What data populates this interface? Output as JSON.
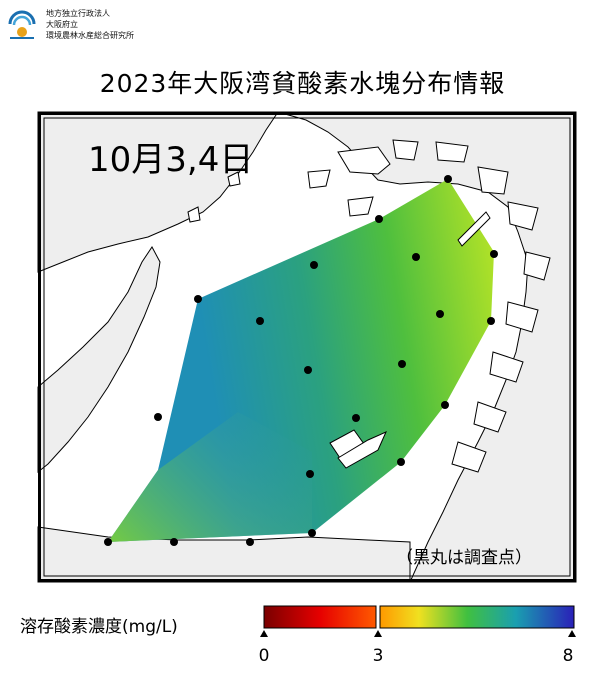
{
  "organization": {
    "lines": [
      "地方独立行政法人",
      "大阪府立",
      "環境農林水産総合研究所"
    ]
  },
  "title": "2023年大阪湾貧酸素水塊分布情報",
  "date_label": "10月3,4日",
  "note": "（黒丸は調査点）",
  "colors": {
    "land": "#eeeeee",
    "sea": "#ffffff",
    "frame": "#000000",
    "oxygen_high": "#1f8fb8",
    "oxygen_mid": "#3cb35a",
    "oxygen_low": "#a8e02a"
  },
  "colorbar": {
    "label": "溶存酸素濃度(mg/L)",
    "min_label": "0",
    "mid_label": "3",
    "max_label": "8",
    "min": 0,
    "threshold": 3,
    "max": 8
  }
}
